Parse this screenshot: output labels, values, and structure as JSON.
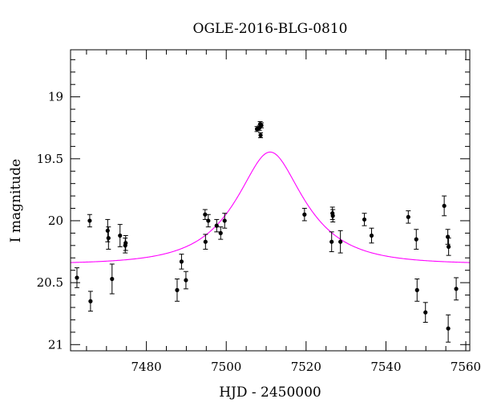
{
  "chart_data": {
    "type": "scatter",
    "title": "OGLE-2016-BLG-0810",
    "xlabel": "HJD - 2450000",
    "ylabel": "I magnitude",
    "xlim": [
      7461,
      7561
    ],
    "ylim": [
      21.05,
      18.62
    ],
    "y_inverted": true,
    "x_ticks": [
      7480,
      7500,
      7520,
      7540,
      7560
    ],
    "y_ticks": [
      19,
      19.5,
      20,
      20.5,
      21
    ],
    "colors": {
      "points": "#000000",
      "model": "#ff00ff"
    },
    "series": [
      {
        "kind": "data",
        "points": [
          {
            "x": 7462.6,
            "y": 20.46,
            "err": 0.08
          },
          {
            "x": 7465.8,
            "y": 20.0,
            "err": 0.05
          },
          {
            "x": 7466.0,
            "y": 20.65,
            "err": 0.08
          },
          {
            "x": 7470.3,
            "y": 20.08,
            "err": 0.09
          },
          {
            "x": 7470.5,
            "y": 20.14,
            "err": 0.09
          },
          {
            "x": 7471.4,
            "y": 20.47,
            "err": 0.12
          },
          {
            "x": 7473.4,
            "y": 20.12,
            "err": 0.09
          },
          {
            "x": 7474.7,
            "y": 20.2,
            "err": 0.06
          },
          {
            "x": 7474.8,
            "y": 20.18,
            "err": 0.06
          },
          {
            "x": 7487.7,
            "y": 20.56,
            "err": 0.09
          },
          {
            "x": 7488.8,
            "y": 20.33,
            "err": 0.06
          },
          {
            "x": 7489.9,
            "y": 20.48,
            "err": 0.07
          },
          {
            "x": 7494.7,
            "y": 19.95,
            "err": 0.04
          },
          {
            "x": 7494.8,
            "y": 20.17,
            "err": 0.06
          },
          {
            "x": 7495.5,
            "y": 20.0,
            "err": 0.05
          },
          {
            "x": 7497.6,
            "y": 20.04,
            "err": 0.05
          },
          {
            "x": 7498.6,
            "y": 20.1,
            "err": 0.05
          },
          {
            "x": 7499.6,
            "y": 20.0,
            "err": 0.06
          },
          {
            "x": 7507.7,
            "y": 19.26,
            "err": 0.02
          },
          {
            "x": 7508.3,
            "y": 19.25,
            "err": 0.02
          },
          {
            "x": 7508.5,
            "y": 19.22,
            "err": 0.02
          },
          {
            "x": 7508.6,
            "y": 19.31,
            "err": 0.02
          },
          {
            "x": 7508.8,
            "y": 19.23,
            "err": 0.02
          },
          {
            "x": 7519.6,
            "y": 19.95,
            "err": 0.05
          },
          {
            "x": 7526.6,
            "y": 19.94,
            "err": 0.05
          },
          {
            "x": 7526.7,
            "y": 19.96,
            "err": 0.05
          },
          {
            "x": 7526.4,
            "y": 20.17,
            "err": 0.08
          },
          {
            "x": 7528.6,
            "y": 20.17,
            "err": 0.09
          },
          {
            "x": 7534.6,
            "y": 19.99,
            "err": 0.05
          },
          {
            "x": 7536.4,
            "y": 20.12,
            "err": 0.06
          },
          {
            "x": 7545.6,
            "y": 19.97,
            "err": 0.05
          },
          {
            "x": 7547.6,
            "y": 20.15,
            "err": 0.08
          },
          {
            "x": 7547.8,
            "y": 20.56,
            "err": 0.09
          },
          {
            "x": 7549.9,
            "y": 20.74,
            "err": 0.08
          },
          {
            "x": 7554.6,
            "y": 19.88,
            "err": 0.08
          },
          {
            "x": 7555.5,
            "y": 20.13,
            "err": 0.06
          },
          {
            "x": 7555.7,
            "y": 20.21,
            "err": 0.07
          },
          {
            "x": 7555.6,
            "y": 20.87,
            "err": 0.11
          },
          {
            "x": 7557.6,
            "y": 20.55,
            "err": 0.09
          }
        ]
      },
      {
        "kind": "model",
        "model": {
          "t0": 7511.0,
          "u0": 0.47,
          "tE": 15.0,
          "base": 20.35
        }
      }
    ],
    "legend": "none",
    "grid": false
  }
}
